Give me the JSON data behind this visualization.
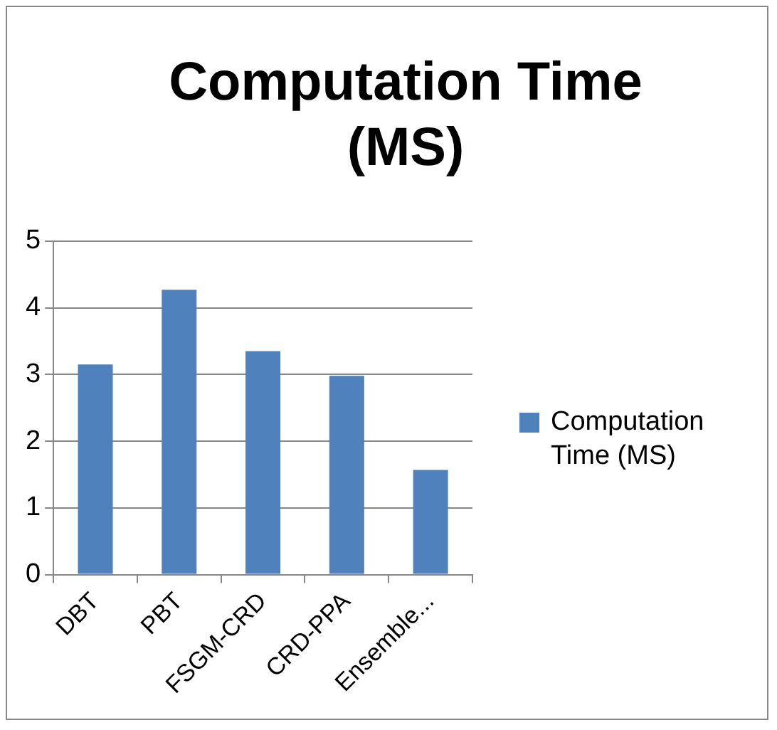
{
  "chart_data": {
    "type": "bar",
    "title": "Computation Time (MS)",
    "categories": [
      "DBT",
      "PBT",
      "FSGM-CRD",
      "CRD-PPA",
      "Ensemble..."
    ],
    "series": [
      {
        "name": "Computation Time (MS)",
        "color": "#4f81bd",
        "values": [
          3.15,
          4.27,
          3.35,
          2.98,
          1.57
        ]
      }
    ],
    "ylim": [
      0,
      5
    ],
    "yticks": [
      0,
      1,
      2,
      3,
      4,
      5
    ],
    "grid": "y",
    "legend": "right"
  }
}
